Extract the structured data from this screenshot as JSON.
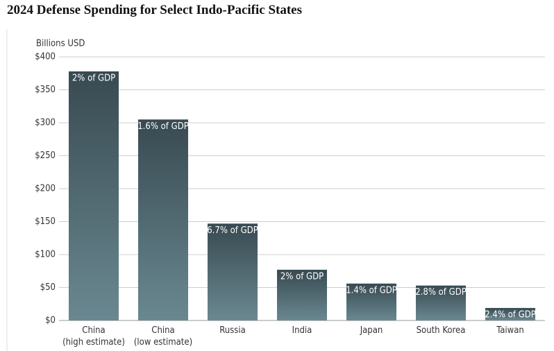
{
  "chart_data": {
    "type": "bar",
    "title": "2024 Defense Spending for Select Indo-Pacific States",
    "y_label": "Billions USD",
    "categories": [
      "China\n(high estimate)",
      "China\n(low estimate)",
      "Russia",
      "India",
      "Japan",
      "South Korea",
      "Taiwan"
    ],
    "values": [
      378,
      305,
      147,
      77,
      56,
      53,
      19
    ],
    "annotations": [
      "2% of GDP",
      "1.6% of GDP",
      "6.7% of GDP",
      "2% of GDP",
      "1.4% of GDP",
      "2.8% of GDP",
      "2.4% of GDP"
    ],
    "color": [
      "#384a51",
      "#6a8891"
    ],
    "ylim": [
      0,
      400
    ],
    "yticks": [
      {
        "value": 0,
        "label": "$0"
      },
      {
        "value": 50,
        "label": "$50"
      },
      {
        "value": 100,
        "label": "$100"
      },
      {
        "value": 150,
        "label": "$150"
      },
      {
        "value": 200,
        "label": "$200"
      },
      {
        "value": 250,
        "label": "$250"
      },
      {
        "value": 300,
        "label": "$300"
      },
      {
        "value": 350,
        "label": "$350"
      },
      {
        "value": 400,
        "label": "$400"
      }
    ],
    "grid": true
  }
}
